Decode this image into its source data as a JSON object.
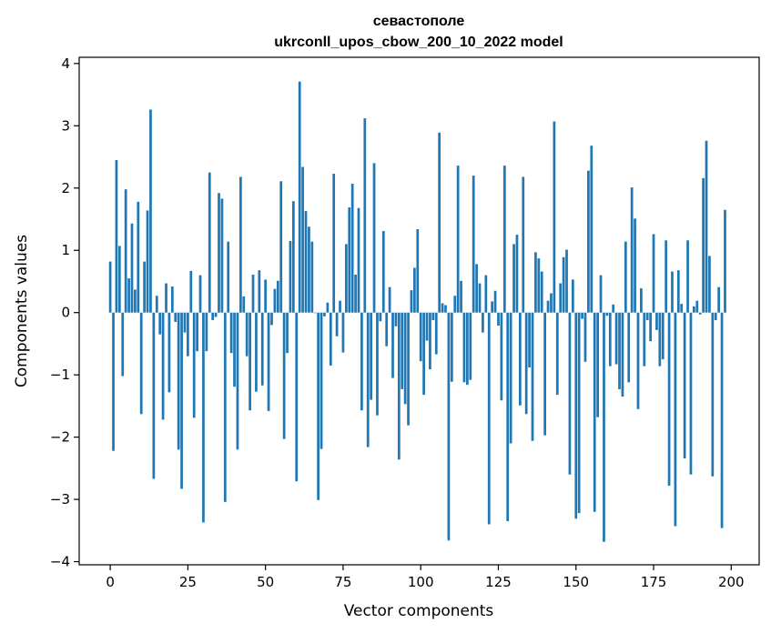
{
  "chart_data": {
    "type": "bar",
    "title": "севастополе",
    "subtitle": "ukrconll_upos_cbow_200_10_2022 model",
    "xlabel": "Vector components",
    "ylabel": "Components values",
    "xlim": [
      -10,
      209
    ],
    "ylim": [
      -4.05,
      4.1
    ],
    "xticks": [
      0,
      25,
      50,
      75,
      100,
      125,
      150,
      175,
      200
    ],
    "yticks": [
      -4,
      -3,
      -2,
      -1,
      0,
      1,
      2,
      3,
      4
    ],
    "xtick_labels": [
      "0",
      "25",
      "50",
      "75",
      "100",
      "125",
      "150",
      "175",
      "200"
    ],
    "ytick_labels": [
      "−4",
      "−3",
      "−2",
      "−1",
      "0",
      "1",
      "2",
      "3",
      "4"
    ],
    "bar_color": "#1f77b4",
    "grid": false,
    "values": [
      0.82,
      -2.22,
      2.45,
      1.07,
      -1.02,
      1.98,
      0.55,
      1.43,
      0.37,
      1.78,
      -1.63,
      0.82,
      1.64,
      3.26,
      -2.67,
      0.27,
      -0.35,
      -1.72,
      0.47,
      -1.28,
      0.42,
      -0.15,
      -2.2,
      -2.83,
      -0.32,
      -0.7,
      0.67,
      -1.69,
      -0.62,
      0.6,
      -3.37,
      -0.62,
      2.25,
      -0.12,
      -0.07,
      1.92,
      1.83,
      -3.04,
      1.14,
      -0.65,
      -1.19,
      -2.2,
      2.18,
      0.26,
      -0.7,
      -1.57,
      0.61,
      -1.27,
      0.68,
      -1.17,
      0.53,
      -1.58,
      -0.2,
      0.38,
      0.51,
      2.11,
      -2.03,
      -0.65,
      1.15,
      1.79,
      -2.71,
      3.71,
      2.34,
      1.63,
      1.38,
      1.14,
      0.0,
      -3.01,
      -2.19,
      -0.06,
      0.16,
      -0.85,
      2.23,
      -0.38,
      0.19,
      -0.64,
      1.1,
      1.69,
      2.07,
      0.61,
      1.68,
      -1.57,
      3.12,
      -2.16,
      -1.4,
      2.4,
      -1.65,
      -0.14,
      1.31,
      -0.54,
      0.41,
      -1.05,
      -0.22,
      -2.36,
      -1.23,
      -1.47,
      -1.81,
      0.36,
      0.72,
      1.34,
      -0.78,
      -1.32,
      -0.45,
      -0.91,
      -0.12,
      -0.67,
      2.89,
      0.15,
      0.12,
      -3.66,
      -1.11,
      0.27,
      2.36,
      0.51,
      -1.12,
      -1.16,
      -1.08,
      2.2,
      0.78,
      0.47,
      -0.32,
      0.6,
      -3.4,
      0.18,
      0.35,
      -0.21,
      -1.41,
      2.36,
      -3.35,
      -2.1,
      1.1,
      1.25,
      -1.49,
      2.18,
      -1.63,
      -0.88,
      -2.06,
      0.97,
      0.87,
      0.66,
      -1.97,
      0.19,
      0.31,
      3.07,
      -1.32,
      0.47,
      0.89,
      1.01,
      -2.6,
      0.53,
      -3.31,
      -3.22,
      -0.1,
      -0.79,
      2.28,
      2.68,
      -3.2,
      -1.68,
      0.6,
      -3.68,
      -0.05,
      -0.86,
      0.13,
      -0.83,
      -1.23,
      -1.35,
      1.14,
      -1.12,
      2.01,
      1.51,
      -1.55,
      0.39,
      -0.86,
      -0.12,
      -0.46,
      1.26,
      -0.28,
      -0.86,
      -0.75,
      1.16,
      -2.78,
      0.66,
      -3.43,
      0.68,
      0.14,
      -2.34,
      1.16,
      -2.6,
      0.1,
      0.19,
      -0.03,
      2.16,
      2.76,
      0.91,
      -2.63,
      -0.12,
      0.41,
      -3.46,
      1.65
    ]
  }
}
